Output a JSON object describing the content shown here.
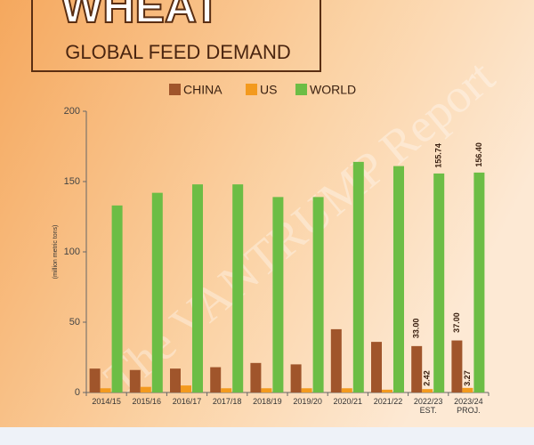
{
  "chart_data": {
    "type": "bar",
    "title": "WHEAT",
    "subtitle": "GLOBAL FEED DEMAND",
    "watermark": "The VANTRUMP Report",
    "y_label": "(million metric tons)",
    "categories": [
      "2014/15",
      "2015/16",
      "2016/17",
      "2017/18",
      "2018/19",
      "2019/20",
      "2020/21",
      "2021/22",
      "2022/23 EST.",
      "2023/24 PROJ."
    ],
    "series": [
      {
        "name": "CHINA",
        "color": "#a0552b",
        "values": [
          17,
          16,
          17,
          18,
          21,
          20,
          45,
          36,
          33.0,
          37.0
        ],
        "value_labels": [
          null,
          null,
          null,
          null,
          null,
          null,
          null,
          null,
          "33.00",
          "37.00"
        ]
      },
      {
        "name": "US",
        "color": "#f39a1e",
        "values": [
          3,
          4,
          5,
          3,
          3,
          3,
          3,
          2,
          2.42,
          3.27
        ],
        "value_labels": [
          null,
          null,
          null,
          null,
          null,
          null,
          null,
          null,
          "2.42",
          "3.27"
        ]
      },
      {
        "name": "WORLD",
        "color": "#6cbd45",
        "values": [
          133,
          142,
          148,
          148,
          139,
          139,
          164,
          161,
          155.74,
          156.4
        ],
        "value_labels": [
          null,
          null,
          null,
          null,
          null,
          null,
          null,
          null,
          "155.74",
          "156.40"
        ]
      }
    ],
    "ylim": [
      0,
      200
    ],
    "yticks": [
      0,
      50,
      100,
      150,
      200
    ]
  }
}
